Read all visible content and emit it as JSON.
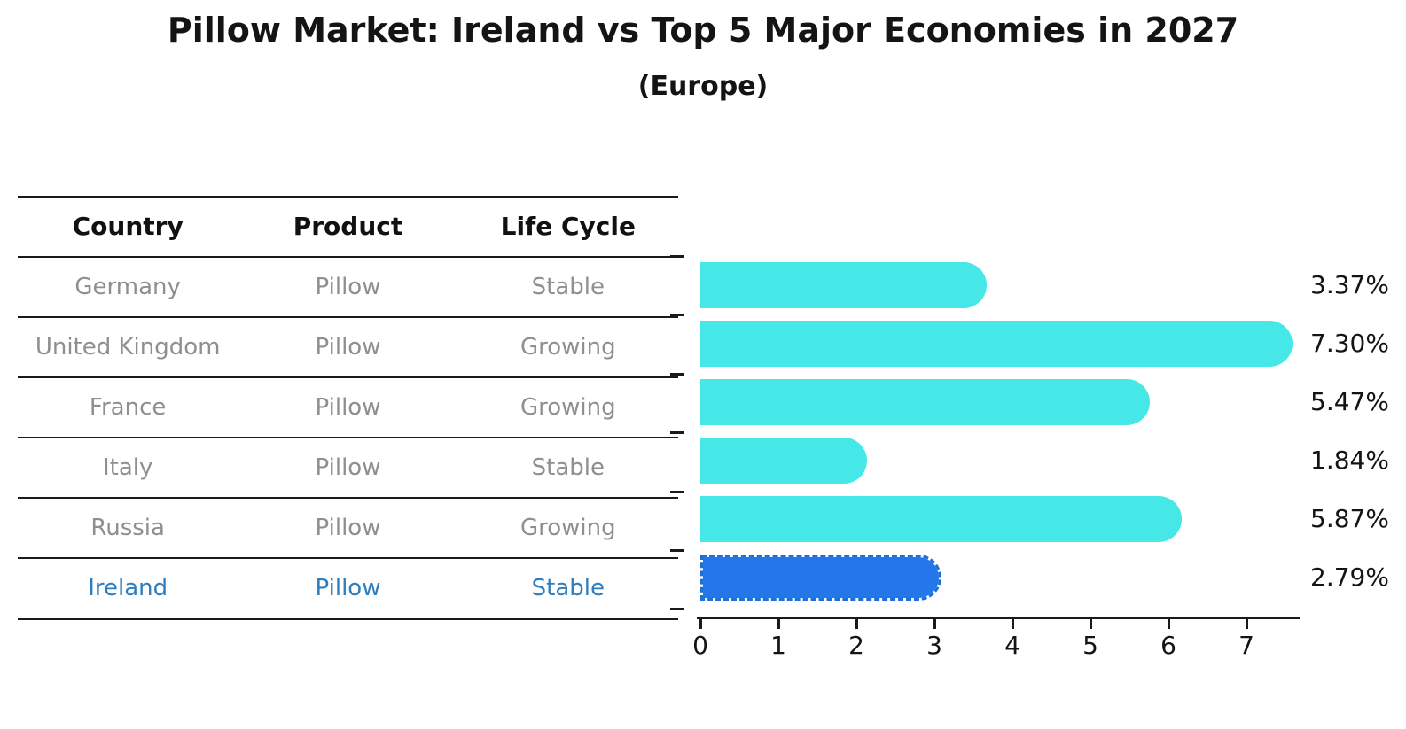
{
  "title": "Pillow Market: Ireland vs Top 5 Major Economies in 2027",
  "subtitle": "(Europe)",
  "table": {
    "headers": [
      "Country",
      "Product",
      "Life Cycle"
    ],
    "rows": [
      {
        "country": "Germany",
        "product": "Pillow",
        "life_cycle": "Stable",
        "highlight": false
      },
      {
        "country": "United Kingdom",
        "product": "Pillow",
        "life_cycle": "Growing",
        "highlight": false
      },
      {
        "country": "France",
        "product": "Pillow",
        "life_cycle": "Growing",
        "highlight": false
      },
      {
        "country": "Italy",
        "product": "Pillow",
        "life_cycle": "Stable",
        "highlight": false
      },
      {
        "country": "Russia",
        "product": "Pillow",
        "life_cycle": "Growing",
        "highlight": false
      },
      {
        "country": "Ireland",
        "product": "Pillow",
        "life_cycle": "Stable",
        "highlight": true
      }
    ]
  },
  "chart_data": {
    "type": "bar",
    "orientation": "horizontal",
    "title": "Pillow Market: Ireland vs Top 5 Major Economies in 2027",
    "subtitle": "(Europe)",
    "categories": [
      "Germany",
      "United Kingdom",
      "France",
      "Italy",
      "Russia",
      "Ireland"
    ],
    "values": [
      3.37,
      7.3,
      5.47,
      1.84,
      5.87,
      2.79
    ],
    "value_labels": [
      "3.37%",
      "7.30%",
      "5.47%",
      "1.84%",
      "5.87%",
      "2.79%"
    ],
    "x_ticks": [
      0,
      1,
      2,
      3,
      4,
      5,
      6,
      7
    ],
    "xlim": [
      0,
      7.7
    ],
    "xlabel": "",
    "ylabel": "",
    "grid": false,
    "legend": null,
    "highlight_index": 5,
    "bar_color": "#45e8e6",
    "highlight_bar_color": "#2377e8",
    "highlight_border_color": "#1e6fd9",
    "highlight_text_color": "#2e7dbf",
    "muted_text_color": "#8f8f8f"
  }
}
